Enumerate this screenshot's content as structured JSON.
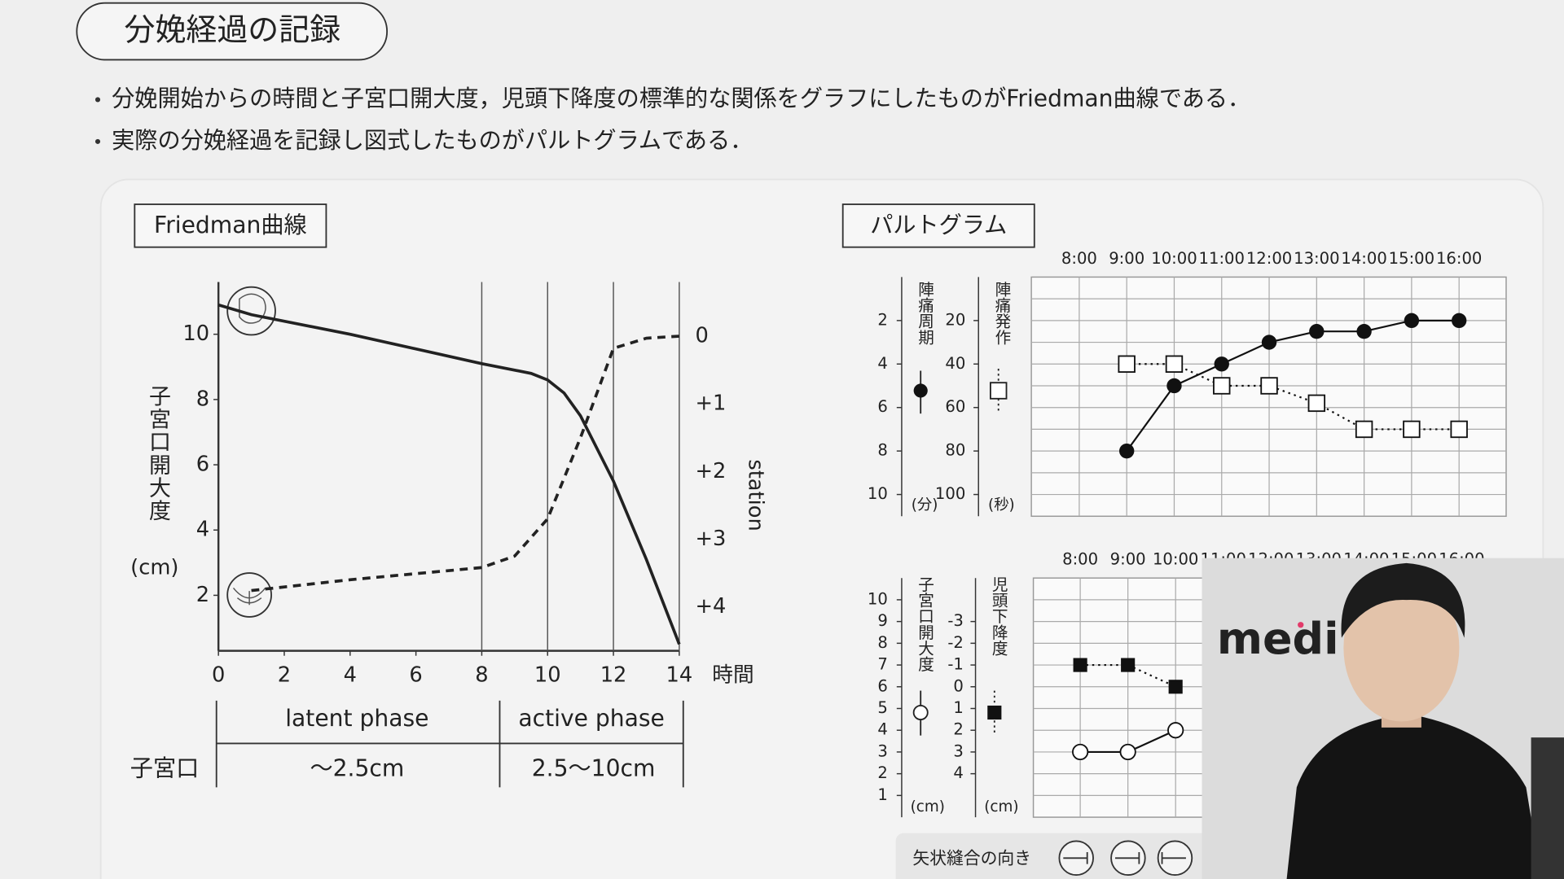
{
  "header": {
    "title": "分娩経過の記録"
  },
  "bullets": [
    "分娩開始からの時間と子宮口開大度，児頭下降度の標準的な関係をグラフにしたものがFriedman曲線である．",
    "実際の分娩経過を記録し図式したものがパルトグラムである．"
  ],
  "chart_data": [
    {
      "type": "line",
      "title": "Friedman曲線",
      "x_label": "時間",
      "y_label": "子宮口開大度",
      "y_unit": "(cm)",
      "y2_label": "station",
      "xlim": [
        0,
        14
      ],
      "xticks": [
        0,
        2,
        4,
        6,
        8,
        10,
        12,
        14
      ],
      "vlines": [
        8,
        10,
        12,
        14
      ],
      "ylim": [
        0.3,
        11.6
      ],
      "yticks": [
        2,
        4,
        6,
        8,
        10
      ],
      "y2lim": [
        4.65,
        -0.8
      ],
      "y2ticks": [
        0,
        {
          "value": 1,
          "label": "+1"
        },
        {
          "value": 2,
          "label": "+2"
        },
        {
          "value": 3,
          "label": "+3"
        },
        {
          "value": 4,
          "label": "+4"
        }
      ],
      "series": [
        {
          "color": "#222222",
          "style": "solid",
          "x": [
            0,
            1,
            4,
            8,
            9.5,
            10,
            10.5,
            11,
            12,
            13,
            14
          ],
          "values": [
            10.9,
            10.6,
            10.0,
            9.1,
            8.8,
            8.6,
            8.2,
            7.5,
            5.5,
            3.1,
            0.5
          ]
        },
        {
          "color": "#222222",
          "style": "dashed",
          "axis": "y2",
          "x": [
            1,
            4,
            8,
            9,
            10,
            11,
            12,
            13,
            14
          ],
          "values": [
            3.76,
            3.6,
            3.42,
            3.25,
            2.7,
            1.5,
            0.18,
            0.03,
            0
          ]
        }
      ]
    },
    {
      "type": "line",
      "title": "パルトグラム",
      "categories": [
        "8:00",
        "9:00",
        "10:00",
        "11:00",
        "12:00",
        "13:00",
        "14:00",
        "15:00",
        "16:00"
      ],
      "y_label": "陣痛周期",
      "y_unit": "(分)",
      "y2_label": "陣痛発作",
      "y2_unit": "(秒)",
      "ylim": [
        11,
        0
      ],
      "yticks": [
        2,
        4,
        6,
        8,
        10
      ],
      "y2lim": [
        110,
        0
      ],
      "y2ticks": [
        20,
        40,
        60,
        80,
        100
      ],
      "grid": true,
      "series": [
        {
          "color": "#111111",
          "style": "solid",
          "marker": "filled-circle",
          "values": [
            null,
            8,
            5,
            4,
            3,
            2.5,
            2.5,
            2,
            2
          ]
        },
        {
          "color": "#111111",
          "style": "dotted",
          "marker": "open-square",
          "axis": "y2",
          "values": [
            null,
            40,
            40,
            50,
            50,
            58,
            70,
            70,
            70
          ]
        }
      ]
    },
    {
      "type": "line",
      "categories": [
        "8:00",
        "9:00",
        "10:00",
        "11:00",
        "12:00",
        "13:00",
        "14:00",
        "15:00",
        "16:00"
      ],
      "y_label": "子宮口開大度",
      "y_unit": "(cm)",
      "y2_label": "児頭下降度",
      "y2_unit": "(cm)",
      "ylim": [
        0,
        11
      ],
      "yticks": [
        1,
        2,
        3,
        4,
        5,
        6,
        7,
        8,
        9,
        10
      ],
      "y2lim": [
        6,
        -5
      ],
      "y2ticks": [
        -3,
        -2,
        -1,
        0,
        1,
        2,
        3,
        4
      ],
      "grid": true,
      "series": [
        {
          "color": "#111111",
          "style": "solid",
          "marker": "open-circle",
          "values": [
            3,
            3,
            4,
            null,
            null,
            null,
            null,
            null,
            null
          ]
        },
        {
          "color": "#111111",
          "style": "dotted",
          "marker": "filled-square",
          "axis": "y2",
          "values": [
            -1,
            -1,
            0,
            null,
            null,
            null,
            null,
            null,
            null
          ]
        }
      ]
    }
  ],
  "phase_table": {
    "label": "子宮口",
    "phases": [
      {
        "name": "latent phase",
        "range": "〜2.5cm"
      },
      {
        "name": "active phase",
        "range": "2.5〜10cm"
      }
    ]
  },
  "sagittal_suture": {
    "label": "矢状縫合の向き"
  },
  "overlay": {
    "logo": "medi"
  }
}
